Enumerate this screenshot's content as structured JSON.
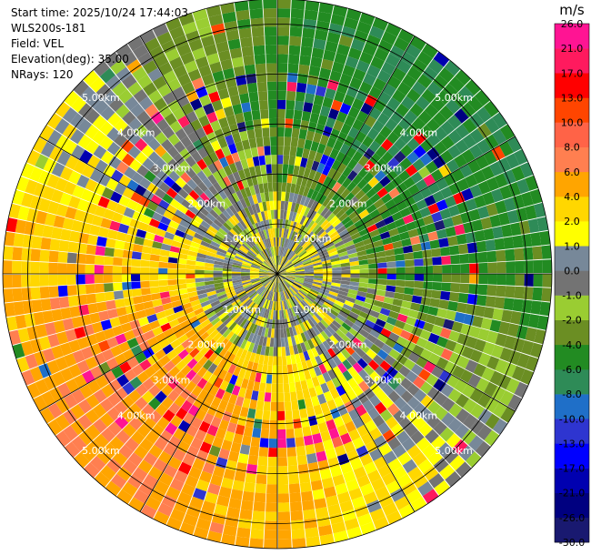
{
  "info": {
    "start_time": "Start time: 2025/10/24 17:44:03",
    "instrument": "WLS200s-181",
    "field": "Field: VEL",
    "elevation": "Elevation(deg): 35.00",
    "nrays": "NRays: 120"
  },
  "colorbar": {
    "unit": "m/s",
    "colors": [
      "#191970",
      "#000080",
      "#0000b0",
      "#0000ff",
      "#2e35d0",
      "#1f6fc8",
      "#2e8b57",
      "#228b22",
      "#6b8e23",
      "#9acd32",
      "#737373",
      "#778899",
      "#ffff00",
      "#ffd700",
      "#ffa500",
      "#ff7f50",
      "#ff6347",
      "#ff4500",
      "#ff0000",
      "#ff1a5e",
      "#ff1493"
    ],
    "tick_labels": [
      "-30.0",
      "-26.0",
      "-21.0",
      "-17.0",
      "-13.0",
      "-10.0",
      "-8.0",
      "-6.0",
      "-4.0",
      "-2.0",
      "-1.0",
      "0.0",
      "1.0",
      "2.0",
      "4.0",
      "6.0",
      "8.0",
      "10.0",
      "13.0",
      "17.0",
      "21.0",
      "26.0"
    ]
  },
  "chart_data": {
    "type": "heatmap",
    "projection": "polar PPI",
    "field": "VEL",
    "units": "m/s",
    "elevation_deg": 35.0,
    "n_rays": 120,
    "range_rings_km": [
      1,
      2,
      3,
      4,
      5
    ],
    "range_ring_labels": [
      "1.00km",
      "2.00km",
      "3.00km",
      "4.00km",
      "5.00km"
    ],
    "radial_lines_deg": [
      0,
      30,
      60,
      90,
      120,
      150,
      180,
      210,
      240,
      270,
      300,
      330
    ],
    "value_range": [
      -30.0,
      30.0
    ],
    "sectors": [
      {
        "direction": "N",
        "dominant": "-6.0 to -4.0",
        "color_name": "green/olive"
      },
      {
        "direction": "NE",
        "dominant": "-8.0 to -6.0",
        "color_name": "sea green"
      },
      {
        "direction": "E",
        "dominant": "-6.0 to -8.0",
        "color_name": "green"
      },
      {
        "direction": "SE",
        "dominant": "-4.0 to 0.0",
        "color_name": "olive/grey"
      },
      {
        "direction": "S",
        "dominant": "1.0 to 4.0",
        "color_name": "yellow"
      },
      {
        "direction": "SW",
        "dominant": "4.0 to 8.0",
        "color_name": "orange/coral"
      },
      {
        "direction": "W",
        "dominant": "2.0 to 6.0",
        "color_name": "yellow/orange"
      },
      {
        "direction": "NW",
        "dominant": "1.0 to 4.0",
        "color_name": "yellow"
      },
      {
        "direction": "center",
        "dominant": "-2.0 to 2.0",
        "color_name": "grey/yellow/yellow-green"
      }
    ]
  }
}
